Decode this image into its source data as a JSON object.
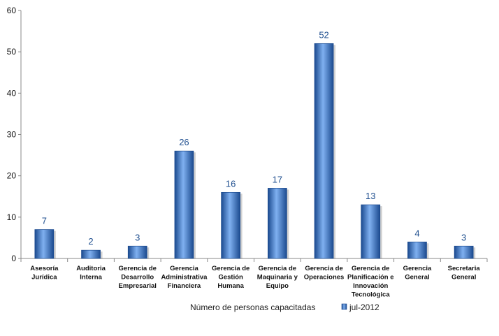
{
  "chart_data": {
    "type": "bar",
    "categories": [
      [
        "Asesoría",
        "Jurídica"
      ],
      [
        "Auditoria",
        "Interna"
      ],
      [
        "Gerencia de",
        "Desarrollo",
        "Empresarial"
      ],
      [
        "Gerencia",
        "Administrativa",
        "Financiera"
      ],
      [
        "Gerencia de",
        "Gestión",
        "Humana"
      ],
      [
        "Gerencia de",
        "Maquinaria y",
        "Equipo"
      ],
      [
        "Gerencia de",
        "Operaciones"
      ],
      [
        "Gerencia de",
        "Planificación e",
        "Innovación",
        "Tecnológica"
      ],
      [
        "Gerencia",
        "General"
      ],
      [
        "Secretaria",
        "General"
      ]
    ],
    "series": [
      {
        "name": "jul-2012",
        "values": [
          7,
          2,
          3,
          26,
          16,
          17,
          52,
          13,
          4,
          3
        ]
      }
    ],
    "xlabel": "Número de personas capacitadas",
    "ylabel": "",
    "ylim": [
      0,
      60
    ],
    "yticks": [
      0,
      10,
      20,
      30,
      40,
      50,
      60
    ],
    "grid": false,
    "legend_position": "bottom",
    "data_labels": true,
    "colors": {
      "bar": "#2e6cc4",
      "bar_light": "#7fb0f0",
      "bar_dark": "#1b4a8f",
      "label": "#1f4f8f",
      "axis": "#888888"
    }
  }
}
